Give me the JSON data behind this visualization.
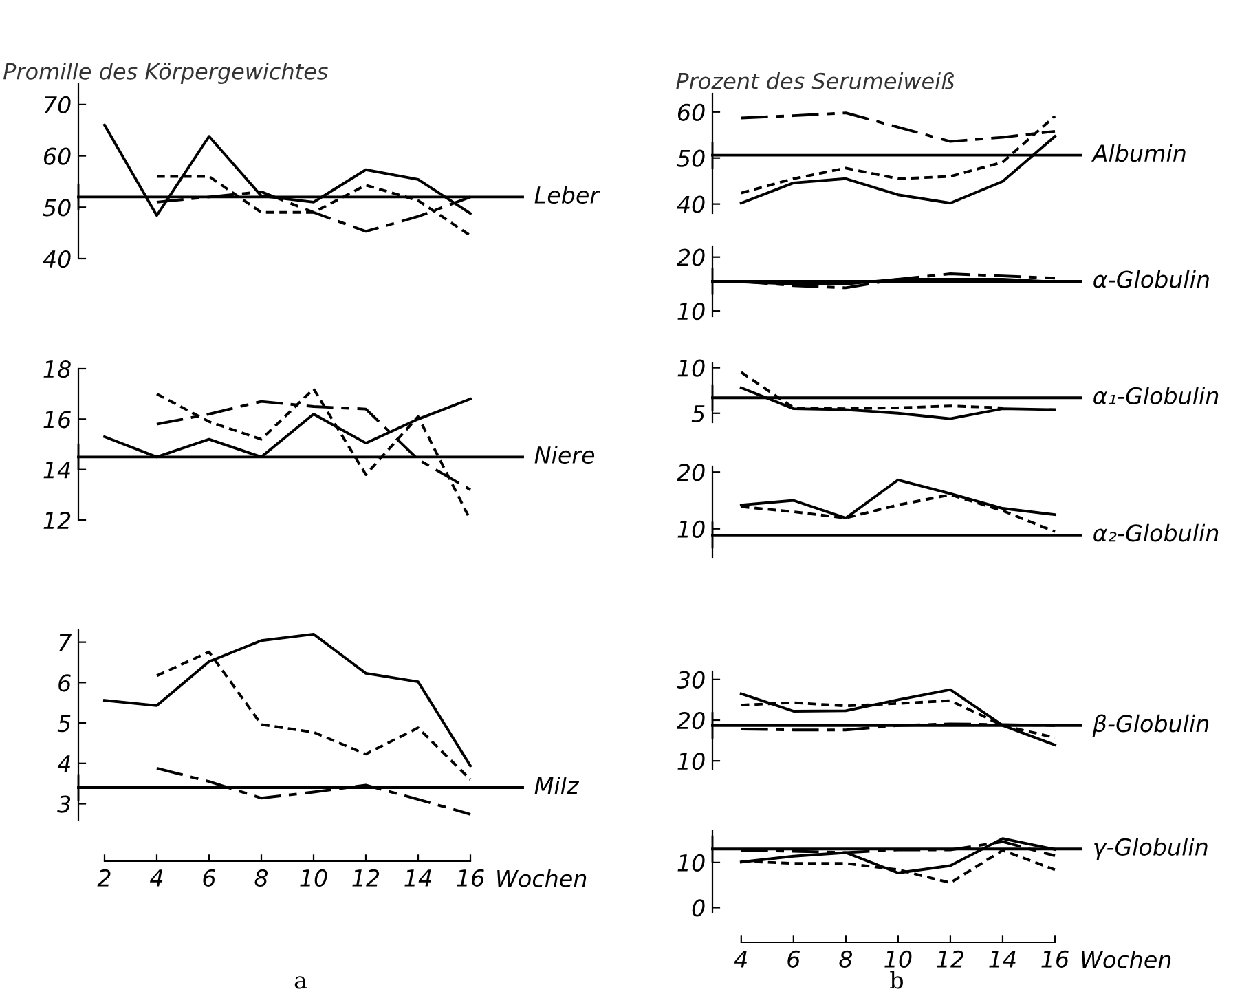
{
  "chart_data": [
    {
      "type": "line",
      "title": "Promille des Körpergewichtes",
      "xlim": [
        1,
        18
      ],
      "xticks": [
        2,
        4,
        6,
        8,
        10,
        12,
        14,
        16
      ],
      "ylim": [
        40,
        74
      ],
      "yticks": [
        40,
        50,
        60,
        70
      ],
      "tick_labels": "y",
      "grid": false,
      "legend": false,
      "marker": "none",
      "x": [
        2,
        4,
        6,
        8,
        10,
        12,
        14,
        16
      ],
      "series": [
        {
          "color": "#000000",
          "line_style": "solid",
          "values": [
            66,
            48.4,
            63.8,
            52.2,
            51,
            57.3,
            55.4,
            48.8
          ]
        },
        {
          "color": "#000000",
          "line_style": "dashed",
          "values": [
            null,
            56,
            56,
            49,
            49,
            54.3,
            51.3,
            44.5
          ]
        },
        {
          "color": "#000000",
          "line_style": "dashdot",
          "values": [
            null,
            51,
            52,
            53,
            49,
            45.3,
            48.2,
            52
          ]
        }
      ],
      "ref_lines": [
        {
          "axis": "y",
          "value": 52,
          "label": "Leber",
          "color": "#000000"
        }
      ]
    },
    {
      "type": "line",
      "xlim": [
        1,
        18
      ],
      "xticks": [
        2,
        4,
        6,
        8,
        10,
        12,
        14,
        16
      ],
      "ylim": [
        12,
        18
      ],
      "yticks": [
        12,
        14,
        16,
        18
      ],
      "tick_labels": "y",
      "grid": false,
      "legend": false,
      "marker": "none",
      "x": [
        2,
        4,
        6,
        8,
        10,
        12,
        14,
        16
      ],
      "series": [
        {
          "color": "#000000",
          "line_style": "solid",
          "values": [
            15.3,
            14.5,
            15.2,
            14.5,
            16.2,
            15.05,
            16,
            16.8
          ]
        },
        {
          "color": "#000000",
          "line_style": "dashed",
          "values": [
            null,
            17,
            15.9,
            15.2,
            17.2,
            13.8,
            16.1,
            12
          ]
        },
        {
          "color": "#000000",
          "line_style": "dashdot",
          "values": [
            null,
            15.8,
            16.2,
            16.7,
            16.5,
            16.4,
            14.4,
            13.2
          ]
        }
      ],
      "ref_lines": [
        {
          "axis": "y",
          "value": 14.5,
          "label": "Niere",
          "color": "#000000"
        }
      ]
    },
    {
      "type": "line",
      "xlabel": "Wochen",
      "xlim": [
        1,
        18
      ],
      "xticks": [
        2,
        4,
        6,
        8,
        10,
        12,
        14,
        16
      ],
      "ylim": [
        2.6,
        7.3
      ],
      "yticks": [
        3,
        4,
        5,
        6,
        7
      ],
      "grid": false,
      "legend": false,
      "marker": "none",
      "x": [
        2,
        4,
        6,
        8,
        10,
        12,
        14,
        16
      ],
      "series": [
        {
          "color": "#000000",
          "line_style": "solid",
          "values": [
            5.56,
            5.43,
            6.52,
            7.04,
            7.2,
            6.23,
            6.02,
            3.94
          ]
        },
        {
          "color": "#000000",
          "line_style": "dashed",
          "values": [
            null,
            6.17,
            6.76,
            4.96,
            4.77,
            4.23,
            4.88,
            3.6
          ]
        },
        {
          "color": "#000000",
          "line_style": "dashdot",
          "values": [
            null,
            3.88,
            3.55,
            3.14,
            3.29,
            3.46,
            3.11,
            2.74
          ]
        }
      ],
      "ref_lines": [
        {
          "axis": "y",
          "value": 3.4,
          "label": "Milz",
          "color": "#000000"
        }
      ],
      "annotations": [
        "a"
      ]
    },
    {
      "type": "line",
      "title": "Prozent des Serumeiweiß",
      "xlim": [
        2.9,
        17
      ],
      "xticks": [
        4,
        6,
        8,
        10,
        12,
        14,
        16
      ],
      "ylim": [
        38,
        64
      ],
      "yticks": [
        40,
        50,
        60
      ],
      "tick_labels": "y",
      "grid": false,
      "legend": false,
      "marker": "none",
      "x": [
        4,
        6,
        8,
        10,
        12,
        14,
        16
      ],
      "series": [
        {
          "color": "#000000",
          "line_style": "solid",
          "values": [
            40.2,
            44.6,
            45.5,
            42,
            40.2,
            44.9,
            54.7
          ]
        },
        {
          "color": "#000000",
          "line_style": "dashed",
          "values": [
            42.4,
            45.5,
            47.8,
            45.5,
            46,
            49.1,
            59.1
          ]
        },
        {
          "color": "#000000",
          "line_style": "dashdot",
          "values": [
            58.7,
            59.2,
            59.8,
            56.7,
            53.6,
            54.5,
            55.8
          ]
        }
      ],
      "ref_lines": [
        {
          "axis": "y",
          "value": 50.6,
          "label": "Albumin",
          "color": "#000000"
        }
      ]
    },
    {
      "type": "line",
      "xlim": [
        2.9,
        17
      ],
      "xticks": [
        4,
        6,
        8,
        10,
        12,
        14,
        16
      ],
      "ylim": [
        9,
        22
      ],
      "yticks": [
        10,
        20
      ],
      "tick_labels": "y",
      "grid": false,
      "legend": false,
      "marker": "none",
      "x": [
        4,
        6,
        8,
        10,
        12,
        14,
        16
      ],
      "series": [
        {
          "color": "#000000",
          "line_style": "solid",
          "values": [
            15.4,
            15,
            15,
            15.9,
            15.9,
            15.9,
            15.4
          ]
        },
        {
          "color": "#000000",
          "line_style": "dashdot",
          "values": [
            15.5,
            14.7,
            14.3,
            15.9,
            16.9,
            16.5,
            16.1
          ]
        }
      ],
      "ref_lines": [
        {
          "axis": "y",
          "value": 15.5,
          "label": "α-Globulin",
          "color": "#000000"
        }
      ]
    },
    {
      "type": "line",
      "xlim": [
        2.9,
        17
      ],
      "xticks": [
        4,
        6,
        8,
        10,
        12,
        14,
        16
      ],
      "ylim": [
        4,
        10.5
      ],
      "yticks": [
        5,
        10
      ],
      "tick_labels": "y",
      "grid": false,
      "legend": false,
      "marker": "none",
      "x": [
        4,
        6,
        8,
        10,
        12,
        14,
        16
      ],
      "series": [
        {
          "color": "#000000",
          "line_style": "solid",
          "values": [
            7.8,
            5.5,
            5.4,
            5,
            4.4,
            5.5,
            5.4
          ]
        },
        {
          "color": "#000000",
          "line_style": "dashed",
          "values": [
            9.5,
            5.6,
            5.5,
            5.6,
            5.8,
            5.6,
            null
          ]
        }
      ],
      "ref_lines": [
        {
          "axis": "y",
          "value": 6.7,
          "label": "α₁-Globulin",
          "color": "#000000"
        }
      ]
    },
    {
      "type": "line",
      "xlim": [
        2.9,
        17
      ],
      "xticks": [
        4,
        6,
        8,
        10,
        12,
        14,
        16
      ],
      "ylim": [
        5,
        21
      ],
      "yticks": [
        10,
        20
      ],
      "tick_labels": "y",
      "grid": false,
      "legend": false,
      "marker": "none",
      "x": [
        4,
        6,
        8,
        10,
        12,
        14,
        16
      ],
      "series": [
        {
          "color": "#000000",
          "line_style": "solid",
          "values": [
            14.2,
            15,
            11.9,
            18.6,
            16.2,
            13.6,
            12.5
          ]
        },
        {
          "color": "#000000",
          "line_style": "dashed",
          "values": [
            13.9,
            13,
            11.9,
            14.2,
            16,
            13.2,
            9.5
          ]
        }
      ],
      "ref_lines": [
        {
          "axis": "y",
          "value": 8.9,
          "label": "α₂-Globulin",
          "color": "#000000"
        }
      ]
    },
    {
      "type": "line",
      "xlim": [
        2.9,
        17
      ],
      "xticks": [
        4,
        6,
        8,
        10,
        12,
        14,
        16
      ],
      "ylim": [
        8,
        32
      ],
      "yticks": [
        10,
        20,
        30
      ],
      "tick_labels": "y",
      "grid": false,
      "legend": false,
      "marker": "none",
      "x": [
        4,
        6,
        8,
        10,
        12,
        14,
        16
      ],
      "series": [
        {
          "color": "#000000",
          "line_style": "solid",
          "values": [
            26.5,
            22.2,
            22.3,
            25,
            27.5,
            18.7,
            13.9
          ]
        },
        {
          "color": "#000000",
          "line_style": "dashed",
          "values": [
            23.7,
            24.3,
            23.5,
            24.1,
            24.8,
            18.7,
            15.7
          ]
        },
        {
          "color": "#000000",
          "line_style": "dashdot",
          "values": [
            17.8,
            17.6,
            17.6,
            18.7,
            19.1,
            18.9,
            18.7
          ]
        }
      ],
      "ref_lines": [
        {
          "axis": "y",
          "value": 18.7,
          "label": "β-Globulin",
          "color": "#000000"
        }
      ]
    },
    {
      "type": "line",
      "xlabel": "Wochen",
      "xlim": [
        2.9,
        17
      ],
      "xticks": [
        4,
        6,
        8,
        10,
        12,
        14,
        16
      ],
      "ylim": [
        -1,
        17
      ],
      "yticks": [
        0,
        10
      ],
      "grid": false,
      "legend": false,
      "marker": "none",
      "x": [
        4,
        6,
        8,
        10,
        12,
        14,
        16
      ],
      "series": [
        {
          "color": "#000000",
          "line_style": "solid",
          "values": [
            10.1,
            11.4,
            12.2,
            7.7,
            9.3,
            15.3,
            12.9
          ]
        },
        {
          "color": "#000000",
          "line_style": "dashed",
          "values": [
            10.3,
            9.8,
            9.8,
            8.4,
            5.5,
            12.7,
            8.4
          ]
        },
        {
          "color": "#000000",
          "line_style": "dashdot",
          "values": [
            12.7,
            12.5,
            12.2,
            12.8,
            12.8,
            14.6,
            11.5
          ]
        }
      ],
      "ref_lines": [
        {
          "axis": "y",
          "value": 13,
          "label": "γ-Globulin",
          "color": "#000000"
        }
      ],
      "annotations": [
        "b"
      ]
    }
  ]
}
